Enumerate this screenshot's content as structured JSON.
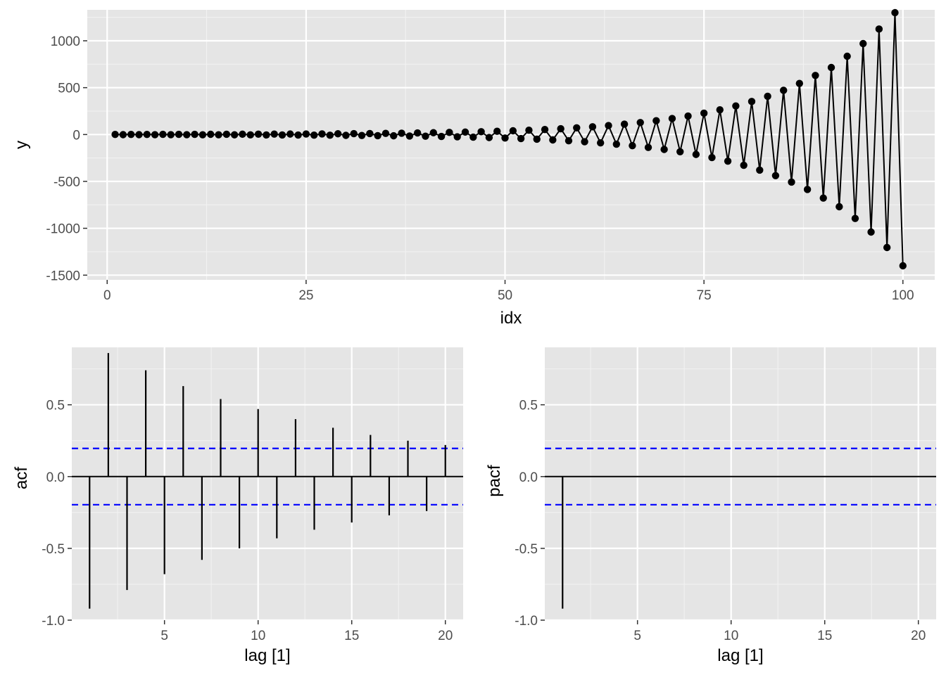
{
  "chart_data": [
    {
      "id": "series",
      "type": "line",
      "markers": true,
      "xlabel": "idx",
      "ylabel": "y",
      "xlim": [
        -2.5,
        104
      ],
      "ylim": [
        -1550,
        1330
      ],
      "x_ticks": [
        0,
        25,
        50,
        75,
        100
      ],
      "y_ticks": [
        -1500,
        -1000,
        -500,
        0,
        500,
        1000
      ],
      "x_tick_labels": [
        "0",
        "25",
        "50",
        "75",
        "100"
      ],
      "y_tick_labels": [
        "-1500",
        "-1000",
        "-500",
        "0",
        "500",
        "1000"
      ],
      "grid": true,
      "line_color": "#000000",
      "ar_coefficient": -0.93,
      "base_amplitude": 1.0,
      "reference_points": {
        "91": 715,
        "93": 835,
        "95": 970,
        "97": 1125,
        "99": 1300,
        "92": -770,
        "94": -895,
        "96": -1040,
        "98": -1205,
        "100": -1400
      },
      "x_range": [
        1,
        100
      ]
    },
    {
      "id": "acf",
      "type": "bar",
      "style": "lollipop-lines",
      "xlabel": "lag [1]",
      "ylabel": "acf",
      "xlim": [
        0.05,
        20.95
      ],
      "ylim": [
        -1.0,
        0.9
      ],
      "x_ticks": [
        5,
        10,
        15,
        20
      ],
      "y_ticks": [
        -1.0,
        -0.5,
        0.0,
        0.5
      ],
      "x_tick_labels": [
        "5",
        "10",
        "15",
        "20"
      ],
      "y_tick_labels": [
        "-1.0",
        "-0.5",
        "0.0",
        "0.5"
      ],
      "grid": true,
      "lags": [
        1,
        2,
        3,
        4,
        5,
        6,
        7,
        8,
        9,
        10,
        11,
        12,
        13,
        14,
        15,
        16,
        17,
        18,
        19,
        20
      ],
      "values": [
        -0.92,
        0.86,
        -0.79,
        0.74,
        -0.68,
        0.63,
        -0.58,
        0.54,
        -0.5,
        0.47,
        -0.43,
        0.4,
        -0.37,
        0.34,
        -0.32,
        0.29,
        -0.27,
        0.25,
        -0.24,
        0.22
      ],
      "ci": 0.196,
      "ci_color": "#0000ff"
    },
    {
      "id": "pacf",
      "type": "bar",
      "style": "lollipop-lines",
      "xlabel": "lag [1]",
      "ylabel": "pacf",
      "xlim": [
        0.05,
        20.95
      ],
      "ylim": [
        -1.0,
        0.9
      ],
      "x_ticks": [
        5,
        10,
        15,
        20
      ],
      "y_ticks": [
        -1.0,
        -0.5,
        0.0,
        0.5
      ],
      "x_tick_labels": [
        "5",
        "10",
        "15",
        "20"
      ],
      "y_tick_labels": [
        "-1.0",
        "-0.5",
        "0.0",
        "0.5"
      ],
      "grid": true,
      "lags": [
        1,
        2,
        3,
        4,
        5,
        6,
        7,
        8,
        9,
        10,
        11,
        12,
        13,
        14,
        15,
        16,
        17,
        18,
        19,
        20
      ],
      "values": [
        -0.92,
        0.0,
        0.0,
        0.0,
        0.0,
        0.0,
        0.0,
        0.0,
        0.0,
        0.0,
        0.0,
        0.0,
        0.0,
        0.0,
        0.0,
        0.0,
        0.0,
        0.0,
        0.0,
        0.0
      ],
      "ci": 0.196,
      "ci_color": "#0000ff"
    }
  ]
}
